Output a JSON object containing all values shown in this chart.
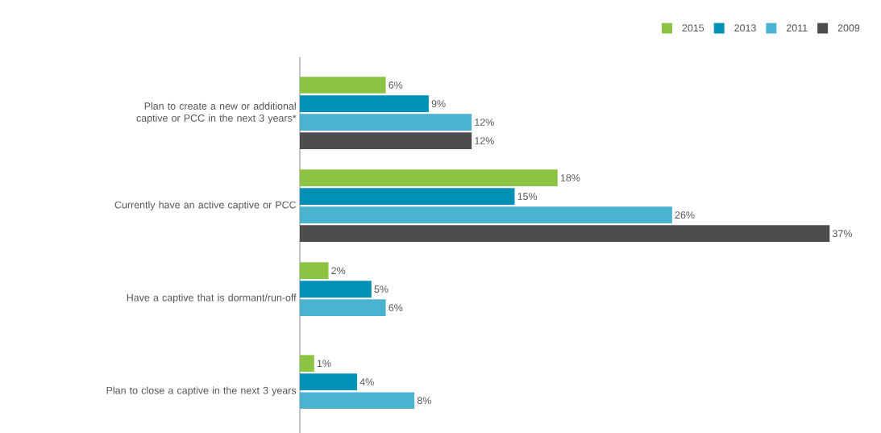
{
  "chart_data": {
    "type": "bar",
    "orientation": "horizontal",
    "legend": "top right",
    "categories": [
      "Plan to create a new or additional captive or PCC in the next 3 years*",
      "Currently have an active captive or PCC",
      "Have a captive that is dormant/run-off",
      "Plan to close a captive in the next 3 years"
    ],
    "series": [
      {
        "name": "2015",
        "color": "#8cc342",
        "values": [
          6,
          18,
          2,
          1
        ],
        "value_labels": [
          "6%",
          "18%",
          "2%",
          "1%"
        ]
      },
      {
        "name": "2013",
        "color": "#0091b5",
        "values": [
          9,
          15,
          5,
          4
        ],
        "value_labels": [
          "9%",
          "15%",
          "5%",
          "4%"
        ]
      },
      {
        "name": "2011",
        "color": "#4bb3cf",
        "values": [
          12,
          26,
          6,
          8
        ],
        "value_labels": [
          "12%",
          "26%",
          "6%",
          "8%"
        ]
      },
      {
        "name": "2009",
        "color": "#4d4d4f",
        "values": [
          12,
          37,
          null,
          null
        ],
        "value_labels": [
          "12%",
          "37%",
          null,
          null
        ]
      }
    ]
  }
}
